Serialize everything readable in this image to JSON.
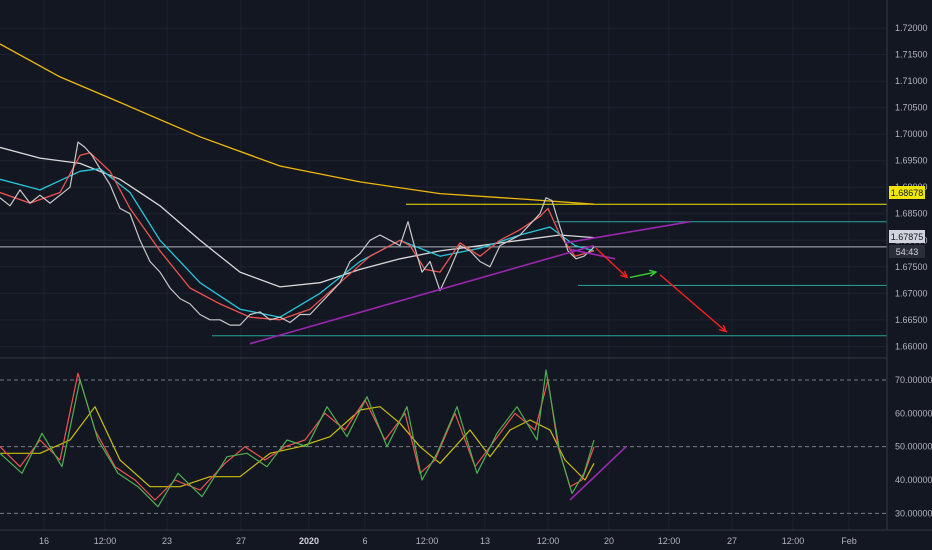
{
  "chart_data": [
    {
      "type": "line",
      "panel": "price",
      "title": "",
      "ylim": [
        1.6578,
        1.7253
      ],
      "yticks": [
        "1.72000",
        "1.71500",
        "1.71000",
        "1.70500",
        "1.70000",
        "1.69500",
        "1.69000",
        "1.68500",
        "1.68000",
        "1.67500",
        "1.67000",
        "1.66500",
        "1.66000"
      ],
      "xlabels": [
        "16",
        "12:00",
        "23",
        "27",
        "2020",
        "6",
        "12:00",
        "13",
        "12:00",
        "20",
        "12:00",
        "27",
        "12:00",
        "Feb"
      ],
      "grid": true,
      "series": [
        {
          "name": "",
          "color": "#f0b90b",
          "x": [
            0,
            60,
            120,
            200,
            280,
            360,
            440,
            520,
            594
          ],
          "y": [
            1.717,
            1.7108,
            1.706,
            1.6995,
            1.694,
            1.691,
            1.6888,
            1.6878,
            1.6868
          ]
        },
        {
          "name": "",
          "color": "#d9d9d9",
          "x": [
            0,
            40,
            80,
            120,
            160,
            200,
            240,
            280,
            320,
            360,
            400,
            440,
            480,
            520,
            560,
            594
          ],
          "y": [
            1.6975,
            1.6955,
            1.6945,
            1.6915,
            1.6865,
            1.68,
            1.674,
            1.6712,
            1.672,
            1.6745,
            1.6765,
            1.678,
            1.679,
            1.68,
            1.681,
            1.6805
          ]
        },
        {
          "name": "",
          "color": "#26c6da",
          "x": [
            0,
            40,
            80,
            100,
            130,
            160,
            200,
            240,
            280,
            320,
            360,
            400,
            440,
            480,
            520,
            550,
            575,
            594
          ],
          "y": [
            1.6915,
            1.6895,
            1.693,
            1.6935,
            1.689,
            1.68,
            1.672,
            1.667,
            1.6655,
            1.67,
            1.676,
            1.68,
            1.677,
            1.6785,
            1.681,
            1.6825,
            1.679,
            1.678
          ]
        },
        {
          "name": "",
          "color": "#ef5350",
          "x": [
            0,
            30,
            60,
            80,
            90,
            110,
            130,
            160,
            190,
            220,
            250,
            280,
            310,
            340,
            370,
            400,
            410,
            425,
            440,
            460,
            480,
            500,
            520,
            540,
            548,
            560,
            575,
            594
          ],
          "y": [
            1.689,
            1.687,
            1.689,
            1.696,
            1.6965,
            1.693,
            1.686,
            1.678,
            1.671,
            1.668,
            1.6655,
            1.665,
            1.667,
            1.672,
            1.677,
            1.68,
            1.679,
            1.6745,
            1.674,
            1.6795,
            1.677,
            1.68,
            1.682,
            1.6845,
            1.686,
            1.681,
            1.677,
            1.678
          ]
        },
        {
          "name": "",
          "color": "#c8c8c8",
          "style": "price",
          "x": [
            0,
            10,
            20,
            30,
            40,
            50,
            60,
            70,
            78,
            85,
            92,
            100,
            110,
            120,
            130,
            140,
            150,
            160,
            170,
            180,
            190,
            200,
            210,
            220,
            230,
            240,
            250,
            260,
            270,
            280,
            290,
            300,
            310,
            320,
            330,
            340,
            350,
            360,
            370,
            380,
            390,
            400,
            408,
            415,
            422,
            430,
            440,
            450,
            460,
            470,
            480,
            490,
            500,
            510,
            520,
            530,
            540,
            546,
            552,
            560,
            568,
            576,
            584,
            594
          ],
          "y": [
            1.688,
            1.6865,
            1.6895,
            1.687,
            1.6885,
            1.687,
            1.6885,
            1.69,
            1.6985,
            1.6975,
            1.696,
            1.6935,
            1.6905,
            1.686,
            1.685,
            1.68,
            1.676,
            1.674,
            1.671,
            1.669,
            1.668,
            1.666,
            1.665,
            1.665,
            1.664,
            1.664,
            1.666,
            1.6665,
            1.665,
            1.6655,
            1.6645,
            1.666,
            1.666,
            1.668,
            1.67,
            1.672,
            1.676,
            1.6775,
            1.68,
            1.681,
            1.68,
            1.679,
            1.6835,
            1.6785,
            1.674,
            1.676,
            1.6705,
            1.6745,
            1.679,
            1.678,
            1.676,
            1.675,
            1.679,
            1.68,
            1.681,
            1.683,
            1.685,
            1.688,
            1.6875,
            1.6825,
            1.678,
            1.6765,
            1.677,
            1.6787
          ]
        }
      ],
      "annotations": {
        "price_line_label": "1.68678",
        "last_price_label": "1.67875",
        "countdown_label": "54:43",
        "hlines": [
          {
            "y": 1.68678,
            "color": "#f0e600",
            "x_from": 406,
            "x_to": 887
          },
          {
            "y": 1.6835,
            "color": "#26a69a",
            "x_from": 555,
            "x_to": 887
          },
          {
            "y": 1.67875,
            "color": "#b2b5be",
            "x_from": 0,
            "x_to": 887
          },
          {
            "y": 1.6715,
            "color": "#26a69a",
            "x_from": 578,
            "x_to": 887
          },
          {
            "y": 1.662,
            "color": "#26a69a",
            "x_from": 212,
            "x_to": 887
          }
        ],
        "trendlines": [
          {
            "color": "#9c27b0",
            "points": [
              [
                250,
                1.6605
              ],
              [
                594,
                1.679
              ]
            ]
          },
          {
            "color": "#9c27b0",
            "points": [
              [
                565,
                1.6795
              ],
              [
                690,
                1.6835
              ]
            ]
          },
          {
            "color": "#9c27b0",
            "points": [
              [
                570,
                1.6783
              ],
              [
                615,
                1.6765
              ]
            ]
          }
        ],
        "arrows": [
          {
            "color": "#ff1f1f",
            "points": [
              [
                596,
                1.6785
              ],
              [
                627,
                1.673
              ]
            ]
          },
          {
            "color": "#36d12f",
            "points": [
              [
                630,
                1.673
              ],
              [
                656,
                1.674
              ]
            ]
          },
          {
            "color": "#ff1f1f",
            "points": [
              [
                660,
                1.6735
              ],
              [
                726,
                1.6628
              ]
            ]
          }
        ]
      }
    },
    {
      "type": "line",
      "panel": "oscillator",
      "title": "",
      "ylim": [
        25,
        76
      ],
      "yticks": [
        "70.00000",
        "60.00000",
        "50.00000",
        "40.00000",
        "30.00000"
      ],
      "levels": [
        70,
        50,
        30
      ],
      "series": [
        {
          "name": "",
          "color": "#cbc00d",
          "x": [
            0,
            40,
            70,
            95,
            120,
            150,
            180,
            210,
            240,
            270,
            300,
            330,
            360,
            380,
            400,
            420,
            440,
            470,
            490,
            510,
            530,
            550,
            565,
            585,
            594
          ],
          "y": [
            48,
            48,
            52,
            62,
            46,
            38,
            38,
            41,
            41,
            48,
            50,
            53,
            61,
            62,
            57,
            50,
            45,
            55,
            47,
            55,
            58,
            55,
            46,
            40,
            45
          ]
        },
        {
          "name": "",
          "color": "#ef5350",
          "x": [
            0,
            20,
            40,
            60,
            78,
            95,
            115,
            135,
            155,
            175,
            200,
            225,
            245,
            265,
            285,
            305,
            325,
            345,
            365,
            385,
            405,
            420,
            435,
            455,
            475,
            495,
            515,
            535,
            548,
            558,
            570,
            582,
            594
          ],
          "y": [
            50,
            44,
            52,
            46,
            72,
            55,
            44,
            40,
            34,
            40,
            37,
            45,
            50,
            46,
            50,
            52,
            60,
            55,
            64,
            52,
            60,
            42,
            46,
            60,
            44,
            52,
            60,
            55,
            70,
            50,
            38,
            40,
            50
          ]
        },
        {
          "name": "",
          "color": "#4caf50",
          "x": [
            0,
            22,
            42,
            62,
            80,
            98,
            118,
            138,
            158,
            178,
            202,
            227,
            247,
            267,
            287,
            307,
            327,
            347,
            367,
            387,
            407,
            422,
            437,
            457,
            477,
            497,
            517,
            537,
            546,
            560,
            572,
            584,
            594
          ],
          "y": [
            48,
            42,
            54,
            44,
            70,
            52,
            42,
            38,
            32,
            42,
            35,
            47,
            48,
            44,
            52,
            50,
            62,
            53,
            65,
            50,
            62,
            40,
            48,
            62,
            42,
            54,
            62,
            52,
            73,
            48,
            36,
            42,
            52
          ]
        }
      ],
      "annotations": {
        "trendline": {
          "color": "#9c27b0",
          "points": [
            [
              570,
              34
            ],
            [
              626,
              50
            ]
          ]
        }
      }
    }
  ]
}
